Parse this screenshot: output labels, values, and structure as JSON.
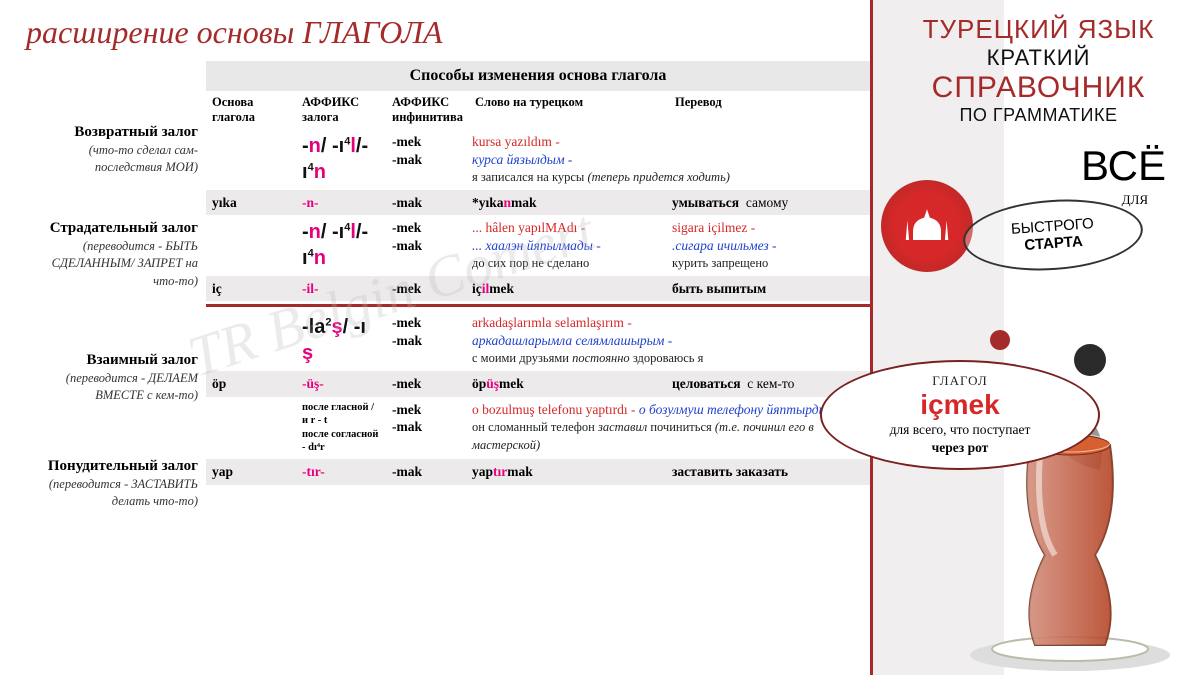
{
  "title": "расширение основы ГЛАГОЛА",
  "watermark": "TR Belgin Comert",
  "table_header": "Способы изменения основа глагола",
  "columns": [
    "Основа глагола",
    "АФФИКС залога",
    "АФФИКС инфинитива",
    "Слово на турецком",
    "Перевод"
  ],
  "voices": {
    "reflexive": {
      "name": "Возвратный залог",
      "desc": "(что-то сделал сам- последствия МОИ)",
      "affix_html": "-<span class='m'>n</span>/ -ı<span class='sup'>4</span><span class='m'>l</span>/- ı<span class='sup'>4</span><span class='m'>n</span>",
      "inf": "-mek\n-mak",
      "ex_tr": "kursa yazıldım -",
      "ex_translit": "курса йязылдым -",
      "ex_ru": "я записался на курсы <i>(теперь придется ходить)</i>",
      "row": {
        "stem": "yıka",
        "af": "-n-",
        "inf": "-mak",
        "word_html": "*yıka<span class='pink'>n</span>mak",
        "tr": "умываться",
        "extra": "самому"
      }
    },
    "passive": {
      "name": "Страдательный залог",
      "desc": "(переводится - БЫТЬ СДЕЛАННЫМ/ ЗАПРЕТ на что-то)",
      "affix_html": "-<span class='m'>n</span>/ -ı<span class='sup'>4</span><span class='m'>l</span>/- ı<span class='sup'>4</span><span class='m'>n</span>",
      "inf": "-mek\n-mak",
      "ex_tr1": "... hâlen yapılMAdı -",
      "ex_translit1": "... хаалэн йяпылмады -",
      "ex_ru1": "до сих пор не сделано",
      "ex_tr2": "sigara içilmez -",
      "ex_translit2": ".сигара ичильмез -",
      "ex_ru2": "курить запрещено",
      "row": {
        "stem": "iç",
        "af": "-il-",
        "inf": "-mek",
        "word_html": "iç<span class='pink'>il</span>mek",
        "tr": "быть выпитым"
      }
    },
    "reciprocal": {
      "name": "Взаимный залог",
      "desc": "(переводится - ДЕЛАЕМ ВМЕСТЕ с кем-то)",
      "affix_html": "-la<span class='sup'>2</span><span class='m'>ş</span>/ -ı <span class='m'>ş</span>",
      "inf": "-mek\n-mak",
      "ex_tr": "arkadaşlarımla selamlaşırım -",
      "ex_translit": "аркадашларымла селямлашырым -",
      "ex_ru": "с моими друзьями <i>постоянно</i> здороваюсь я",
      "row": {
        "stem": "öp",
        "af": "-üş-",
        "inf": "-mek",
        "word_html": "öp<span class='pink'>üş</span>mek",
        "tr": "целоваться",
        "extra": "с кем-то"
      }
    },
    "causative": {
      "name": "Понудительный залог",
      "desc": "(переводится - ЗАСТАВИТЬ делать что-то)",
      "note1": "после гласной / и r - t",
      "note2": "после согласной - dı⁴r",
      "inf": "-mek\n-mak",
      "ex_tr": "o bozulmuş telefonu yaptırdı - <i style='color:#1e3fcf'>о бозулмуш телефону йяптырды -</i>",
      "ex_ru": "он сломанный телефон <i>заставил</i> починиться <i>(т.е. починил его в мастерской)</i>",
      "row": {
        "stem": "yap",
        "af": "-tır-",
        "inf": "-mak",
        "word_html": "yap<span class='pink'>tır</span>mak",
        "tr": "заставить заказать"
      }
    }
  },
  "sidebar": {
    "h1": "ТУРЕЦКИЙ ЯЗЫК",
    "h2": "КРАТКИЙ",
    "h3": "СПРАВОЧНИК",
    "h4": "ПО ГРАММАТИКЕ",
    "vse": "ВСЁ",
    "dlya": "ДЛЯ",
    "circle1": "БЫСТРОГО",
    "circle2": "СТАРТА"
  },
  "callout": {
    "g1": "ГЛАГОЛ",
    "g2": "içmek",
    "g3": "для всего, что поступает",
    "g4": "через рот"
  },
  "colors": {
    "accent": "#a52a2a",
    "pink": "#e6007e",
    "red": "#d62828",
    "blue": "#1e3fcf",
    "grey": "#eceaea"
  }
}
